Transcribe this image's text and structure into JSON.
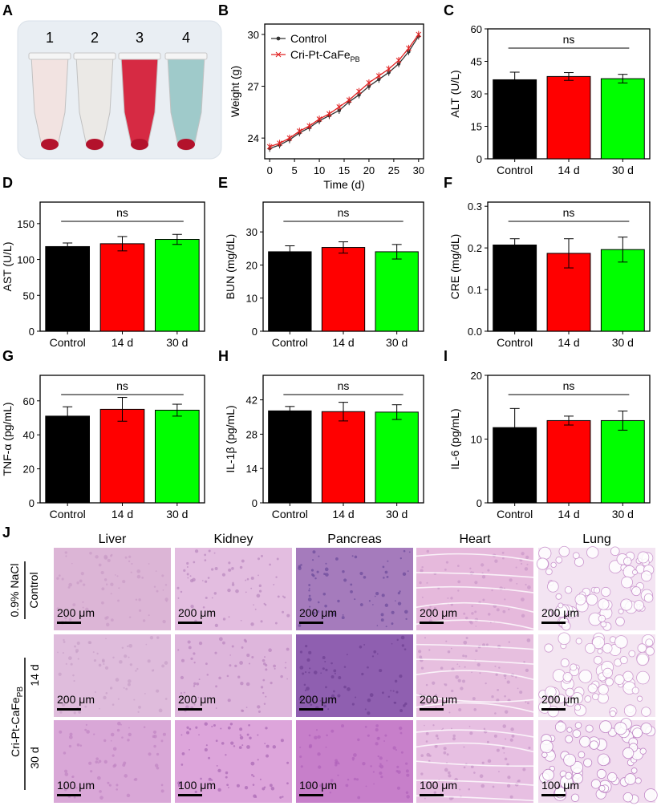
{
  "panels": {
    "A": "A",
    "B": "B",
    "C": "C",
    "D": "D",
    "E": "E",
    "F": "F",
    "G": "G",
    "H": "H",
    "I": "I",
    "J": "J"
  },
  "tubes": {
    "labels": [
      "1",
      "2",
      "3",
      "4"
    ],
    "colors": [
      "#f3e3e1",
      "#ece9e6",
      "#d5203a",
      "#9cc9c8"
    ]
  },
  "colors": {
    "control": "#000000",
    "d14": "#ff0000",
    "d30": "#00ff00",
    "line_control": "#333333",
    "line_treated": "#e02020"
  },
  "chart_data": [
    {
      "id": "B",
      "type": "line",
      "xlabel": "Time (d)",
      "ylabel": "Weight (g)",
      "xlim": [
        -1,
        31
      ],
      "ylim": [
        22.8,
        30.6
      ],
      "xticks": [
        0,
        5,
        10,
        15,
        20,
        25,
        30
      ],
      "yticks": [
        24,
        27,
        30
      ],
      "legend": [
        "Control",
        "Cri-Pt-CaFe",
        "PB"
      ],
      "series": [
        {
          "name": "Control",
          "x": [
            0,
            2,
            4,
            6,
            8,
            10,
            12,
            14,
            16,
            18,
            20,
            22,
            24,
            26,
            28,
            30
          ],
          "values": [
            23.4,
            23.6,
            23.9,
            24.3,
            24.6,
            25.0,
            25.3,
            25.6,
            26.1,
            26.5,
            27.0,
            27.4,
            27.8,
            28.3,
            29.0,
            29.9
          ],
          "err": 0.2
        },
        {
          "name": "Cri-Pt-CaFePB",
          "x": [
            0,
            2,
            4,
            6,
            8,
            10,
            12,
            14,
            16,
            18,
            20,
            22,
            24,
            26,
            28,
            30
          ],
          "values": [
            23.5,
            23.7,
            24.0,
            24.4,
            24.7,
            25.1,
            25.4,
            25.8,
            26.2,
            26.7,
            27.2,
            27.6,
            28.0,
            28.5,
            29.2,
            30.0
          ],
          "err": 0.2
        }
      ]
    },
    {
      "id": "C",
      "type": "bar",
      "ylabel": "ALT (U/L)",
      "categories": [
        "Control",
        "14 d",
        "30 d"
      ],
      "values": [
        36.5,
        38,
        37
      ],
      "errors": [
        3.5,
        1.8,
        2
      ],
      "ylim": [
        0,
        60
      ],
      "yticks": [
        0,
        15,
        30,
        45,
        60
      ],
      "annotation": "ns"
    },
    {
      "id": "D",
      "type": "bar",
      "ylabel": "AST (U/L)",
      "categories": [
        "Control",
        "14 d",
        "30 d"
      ],
      "values": [
        118,
        122,
        128
      ],
      "errors": [
        5,
        10,
        7
      ],
      "ylim": [
        0,
        180
      ],
      "yticks": [
        0,
        50,
        100,
        150
      ],
      "annotation": "ns"
    },
    {
      "id": "E",
      "type": "bar",
      "ylabel": "BUN (mg/dL)",
      "categories": [
        "Control",
        "14 d",
        "30 d"
      ],
      "values": [
        24,
        25.3,
        24
      ],
      "errors": [
        1.8,
        1.7,
        2.2
      ],
      "ylim": [
        0,
        39
      ],
      "yticks": [
        0,
        10,
        20,
        30
      ],
      "annotation": "ns"
    },
    {
      "id": "F",
      "type": "bar",
      "ylabel": "CRE (mg/dL)",
      "categories": [
        "Control",
        "14 d",
        "30 d"
      ],
      "values": [
        0.207,
        0.187,
        0.196
      ],
      "errors": [
        0.015,
        0.035,
        0.03
      ],
      "ylim": [
        0,
        0.31
      ],
      "yticks": [
        0.0,
        0.1,
        0.2,
        0.3
      ],
      "tickDecimals": 1,
      "annotation": "ns"
    },
    {
      "id": "G",
      "type": "bar",
      "ylabel": "TNF-α (pg/mL)",
      "categories": [
        "Control",
        "14 d",
        "30 d"
      ],
      "values": [
        51,
        55,
        54.5
      ],
      "errors": [
        5.5,
        7,
        3.5
      ],
      "ylim": [
        0,
        75
      ],
      "yticks": [
        0,
        20,
        40,
        60
      ],
      "annotation": "ns"
    },
    {
      "id": "H",
      "type": "bar",
      "ylabel": "IL-1β (pg/mL)",
      "categories": [
        "Control",
        "14 d",
        "30 d"
      ],
      "values": [
        37.5,
        37.2,
        37.0
      ],
      "errors": [
        1.8,
        3.8,
        3
      ],
      "ylim": [
        0,
        52
      ],
      "yticks": [
        0,
        14,
        28,
        42
      ],
      "annotation": "ns"
    },
    {
      "id": "I",
      "type": "bar",
      "ylabel": "IL-6 (pg/mL)",
      "categories": [
        "Control",
        "14 d",
        "30 d"
      ],
      "values": [
        11.8,
        12.9,
        12.9
      ],
      "errors": [
        3,
        0.7,
        1.5
      ],
      "ylim": [
        0,
        20
      ],
      "yticks": [
        0,
        10,
        20
      ],
      "annotation": "ns"
    }
  ],
  "histology": {
    "tissues": [
      "Liver",
      "Kidney",
      "Pancreas",
      "Heart",
      "Lung"
    ],
    "row_labels": {
      "control_top": "0.9% NaCl",
      "control_bottom": "Control",
      "treated_main": "Cri-Pt-CaFe",
      "treated_sub": "PB",
      "d14": "14 d",
      "d30": "30 d"
    },
    "scale_bars": [
      [
        "200 μm",
        "200 μm",
        "200 μm",
        "200 μm",
        "200 μm"
      ],
      [
        "200 μm",
        "200 μm",
        "200 μm",
        "200 μm",
        "200 μm"
      ],
      [
        "100 μm",
        "100 μm",
        "100 μm",
        "100 μm",
        "100 μm"
      ]
    ],
    "tissue_colors": [
      [
        "#dcb5d6",
        "#e3bde0",
        "#a57bbc",
        "#e6b9dc",
        "#f3e4f2"
      ],
      [
        "#dfbcdc",
        "#deb6dc",
        "#8f5fb0",
        "#e7bfdf",
        "#f4e6f2"
      ],
      [
        "#d9a7d7",
        "#dda5db",
        "#c77fca",
        "#e7bfe2",
        "#f1dcef"
      ]
    ],
    "texture_colors": [
      [
        "#c99bc6",
        "#b888bd",
        "#6b4a9a",
        "#c997c8",
        "#c58bc9"
      ],
      [
        "#c89fc8",
        "#b985bd",
        "#6c3e91",
        "#c495c6",
        "#c88fca"
      ],
      [
        "#c084c3",
        "#a866b4",
        "#b062bb",
        "#c593c6",
        "#b979c0"
      ]
    ]
  }
}
